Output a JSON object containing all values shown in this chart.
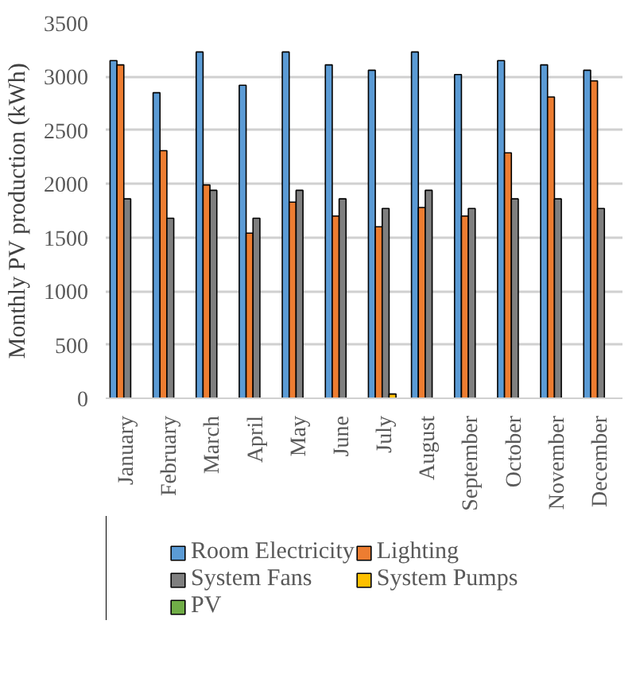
{
  "chart_data": {
    "type": "bar",
    "ylabel": "Monthly PV production (kWh)",
    "categories": [
      "January",
      "February",
      "March",
      "April",
      "May",
      "June",
      "July",
      "August",
      "September",
      "October",
      "November",
      "December"
    ],
    "series": [
      {
        "name": "Room Electricity",
        "color": "#5b9bd5",
        "values": [
          3150,
          2850,
          3230,
          2920,
          3230,
          3110,
          3060,
          3230,
          3020,
          3150,
          3110,
          3060
        ]
      },
      {
        "name": "Lighting",
        "color": "#ed7d31",
        "values": [
          3110,
          2310,
          1990,
          1540,
          1830,
          1700,
          1600,
          1780,
          1700,
          2290,
          2810,
          2960
        ]
      },
      {
        "name": "System Fans",
        "color": "#7f7f7f",
        "values": [
          1860,
          1680,
          1940,
          1680,
          1940,
          1860,
          1770,
          1940,
          1770,
          1860,
          1860,
          1770
        ]
      },
      {
        "name": "System Pumps",
        "color": "#ffc000",
        "values": [
          0,
          0,
          0,
          0,
          0,
          0,
          40,
          0,
          0,
          0,
          0,
          0
        ]
      },
      {
        "name": "PV",
        "color": "#70ad47",
        "values": [
          0,
          0,
          0,
          0,
          0,
          0,
          0,
          0,
          0,
          0,
          0,
          0
        ]
      }
    ],
    "ylim": [
      0,
      3500
    ],
    "yticks": [
      0,
      500,
      1000,
      1500,
      2000,
      2500,
      3000,
      3500
    ],
    "grid": "y",
    "legend": "bottom"
  }
}
